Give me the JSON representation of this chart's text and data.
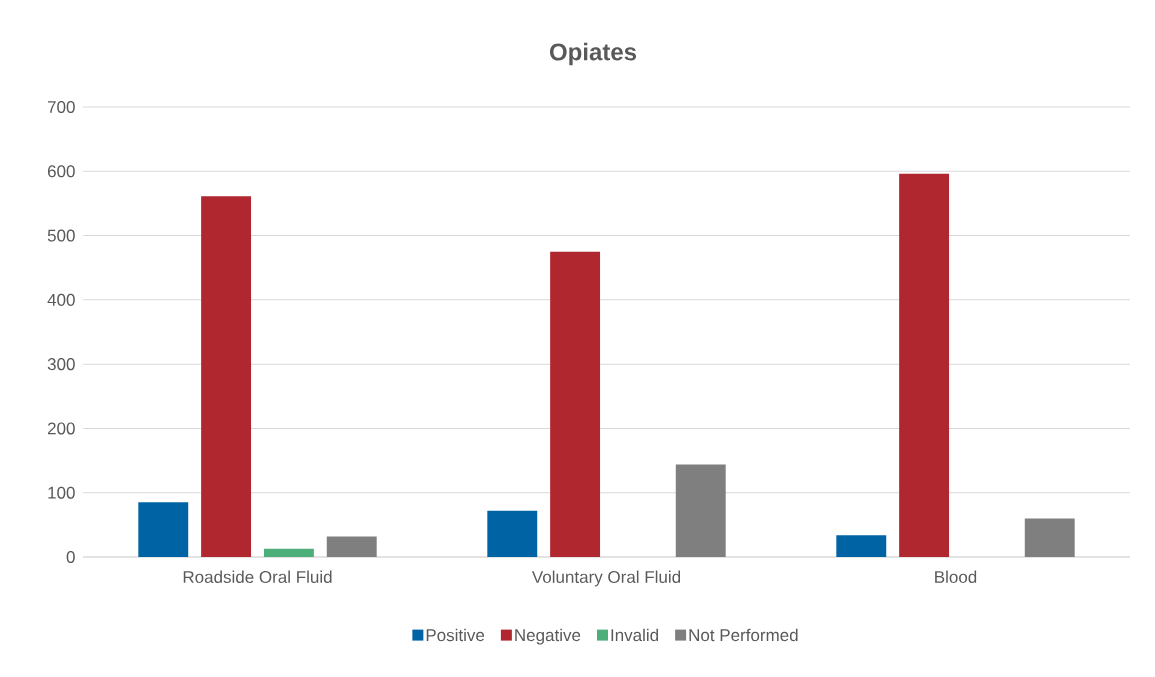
{
  "chart_data": {
    "type": "bar",
    "title": "Opiates",
    "categories": [
      "Roadside Oral Fluid",
      "Voluntary Oral Fluid",
      "Blood"
    ],
    "series": [
      {
        "name": "Positive",
        "color": "#0064a4",
        "values": [
          85,
          72,
          34
        ]
      },
      {
        "name": "Negative",
        "color": "#b0272f",
        "values": [
          561,
          475,
          596
        ]
      },
      {
        "name": "Invalid",
        "color": "#4caf7a",
        "values": [
          13,
          0,
          0
        ]
      },
      {
        "name": "Not Performed",
        "color": "#7f7f7f",
        "values": [
          32,
          144,
          60
        ]
      }
    ],
    "ylim": [
      0,
      700
    ],
    "yticks": [
      0,
      100,
      200,
      300,
      400,
      500,
      600,
      700
    ],
    "grid": "y",
    "legend": "bottom"
  }
}
